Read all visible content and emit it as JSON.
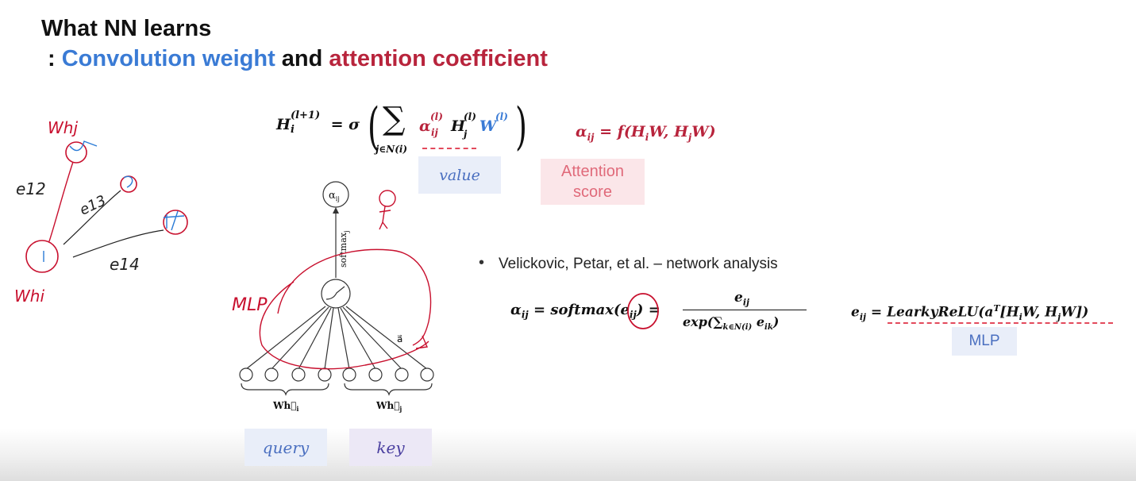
{
  "title": {
    "line1": "What NN learns",
    "prefix": ": ",
    "blue_part": "Convolution weight",
    "middle": " and ",
    "red_part": "attention coefficient"
  },
  "equations": {
    "update_lhs": "H",
    "update_lhs_sub": "i",
    "update_lhs_sup": "(l+1)",
    "equals_sigma": "= σ",
    "sum_symbol": "∑",
    "sum_sub": "j∈N(i)",
    "alpha": "α",
    "alpha_sub": "ij",
    "alpha_sup": "(l)",
    "h_term": "H",
    "h_sub": "j",
    "h_sup": "(l)",
    "w_term": "W",
    "w_sup": "(l)",
    "alpha_def": "α",
    "alpha_def_sub": "ij",
    "alpha_def_rhs": " = f(H",
    "alpha_def_rhs2": "W, H",
    "alpha_def_rhs3": "W)",
    "softmax_lhs": "α",
    "softmax_lhs_sub": "ij",
    "softmax_mid": " = softmax(",
    "softmax_e": "e",
    "softmax_e_sub": "ij",
    "softmax_close": ") =",
    "frac_num": "e",
    "frac_num_sub": "ij",
    "frac_den": "exp(∑",
    "frac_den_sub": "k∈N(i)",
    "frac_den_tail": " e",
    "frac_den_tail_sub": "ik",
    "frac_den_close": ")",
    "e_lhs": "e",
    "e_lhs_sub": "ij",
    "e_rhs": " = LearkyReLU(a",
    "e_rhs_sup": "T",
    "e_rhs2": "[H",
    "e_rhs2_sub": "i",
    "e_rhs3": "W, H",
    "e_rhs3_sub": "j",
    "e_rhs4": "W])"
  },
  "tags": {
    "value": "value",
    "attention_score": "Attention score",
    "mlp": "MLP",
    "query": "query",
    "key": "key"
  },
  "bullet": {
    "dot": "•",
    "text": "Velickovic, Petar, et al. – network analysis"
  },
  "figure": {
    "alpha_node": "α",
    "alpha_node_sub": "ij",
    "softmax_label": "softmax",
    "softmax_sub": "j",
    "a_label": "a⃗",
    "wh_i": "Wh⃗",
    "wh_i_sub": "i",
    "wh_j": "Wh⃗",
    "wh_j_sub": "j"
  },
  "handwriting": {
    "node_top": "Whj",
    "node_bottom": "Whi",
    "e12": "e12",
    "e13": "e13",
    "e14": "e14",
    "mlp": "MLP"
  },
  "colors": {
    "blue": "#3a7bd5",
    "red": "#b8243c",
    "ink_red": "#c8102e",
    "tag_blue_bg": "#e9eef9",
    "tag_pink_bg": "#fbe6e9"
  }
}
